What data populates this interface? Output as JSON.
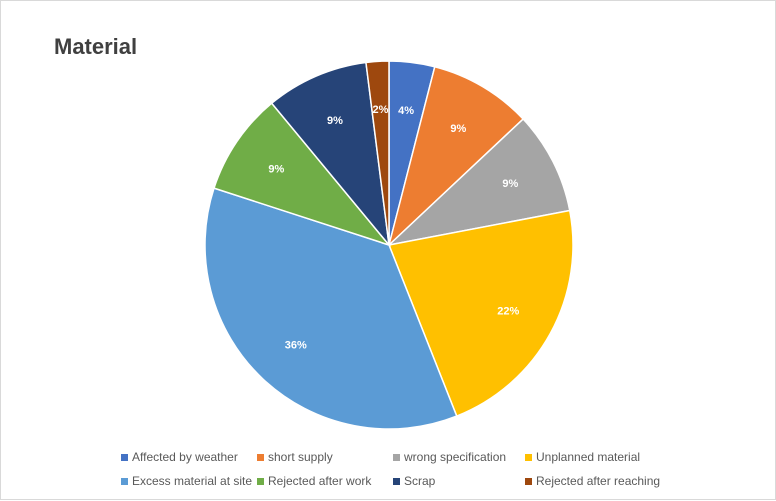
{
  "chart_data": {
    "type": "pie",
    "title": "Material",
    "legend_position": "bottom",
    "slices": [
      {
        "label": "Affected by weather",
        "value": 4,
        "display": "4%",
        "color": "#4472C4"
      },
      {
        "label": "short supply",
        "value": 9,
        "display": "9%",
        "color": "#ED7D31"
      },
      {
        "label": "wrong specification",
        "value": 9,
        "display": "9%",
        "color": "#A5A5A5"
      },
      {
        "label": "Unplanned material",
        "value": 22,
        "display": "22%",
        "color": "#FFC000"
      },
      {
        "label": "Excess material at site",
        "value": 36,
        "display": "36%",
        "color": "#5B9BD5"
      },
      {
        "label": "Rejected after work",
        "value": 9,
        "display": "9%",
        "color": "#70AD47"
      },
      {
        "label": "Scrap",
        "value": 9,
        "display": "9%",
        "color": "#264478"
      },
      {
        "label": "Rejected after reaching",
        "value": 2,
        "display": "2%",
        "color": "#9E480E"
      }
    ]
  }
}
